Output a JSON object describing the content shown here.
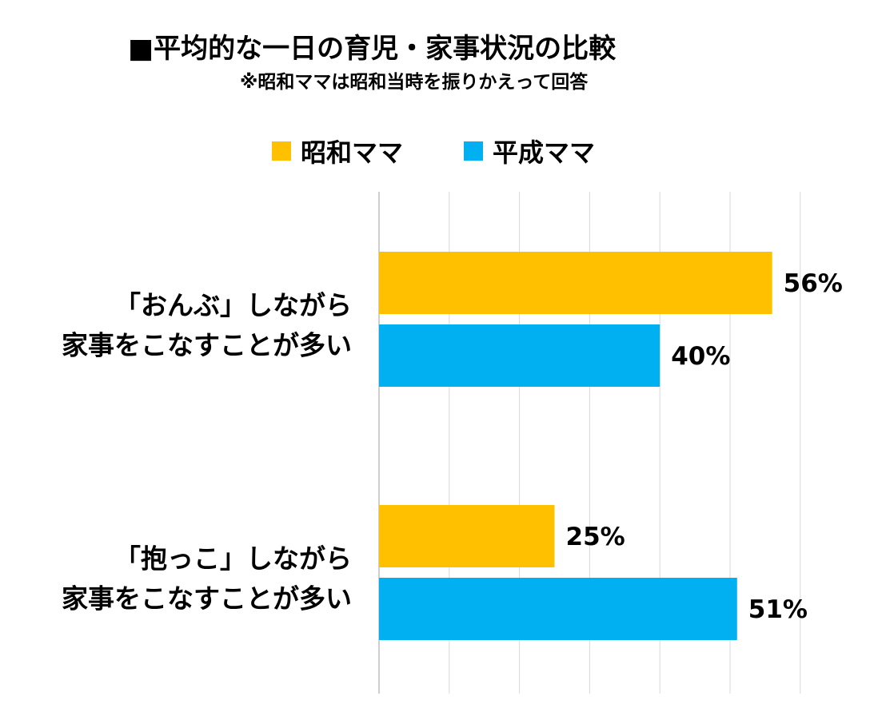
{
  "chart_data": {
    "type": "bar",
    "orientation": "horizontal",
    "title": "■平均的な一日の育児・家事状況の比較",
    "subtitle": "※昭和ママは昭和当時を振りかえって回答",
    "categories": [
      [
        "「おんぶ」しながら",
        "家事をこなすことが多い"
      ],
      [
        "「抱っこ」しながら",
        "家事をこなすことが多い"
      ]
    ],
    "series": [
      {
        "name": "昭和ママ",
        "color": "#FFC000",
        "values": [
          56,
          25
        ],
        "labels": [
          "56%",
          "25%"
        ]
      },
      {
        "name": "平成ママ",
        "color": "#00B0F0",
        "values": [
          40,
          51
        ],
        "labels": [
          "40%",
          "51%"
        ]
      }
    ],
    "xlim": [
      0,
      60
    ],
    "grid": true,
    "legend_position": "top",
    "unit": "%"
  }
}
